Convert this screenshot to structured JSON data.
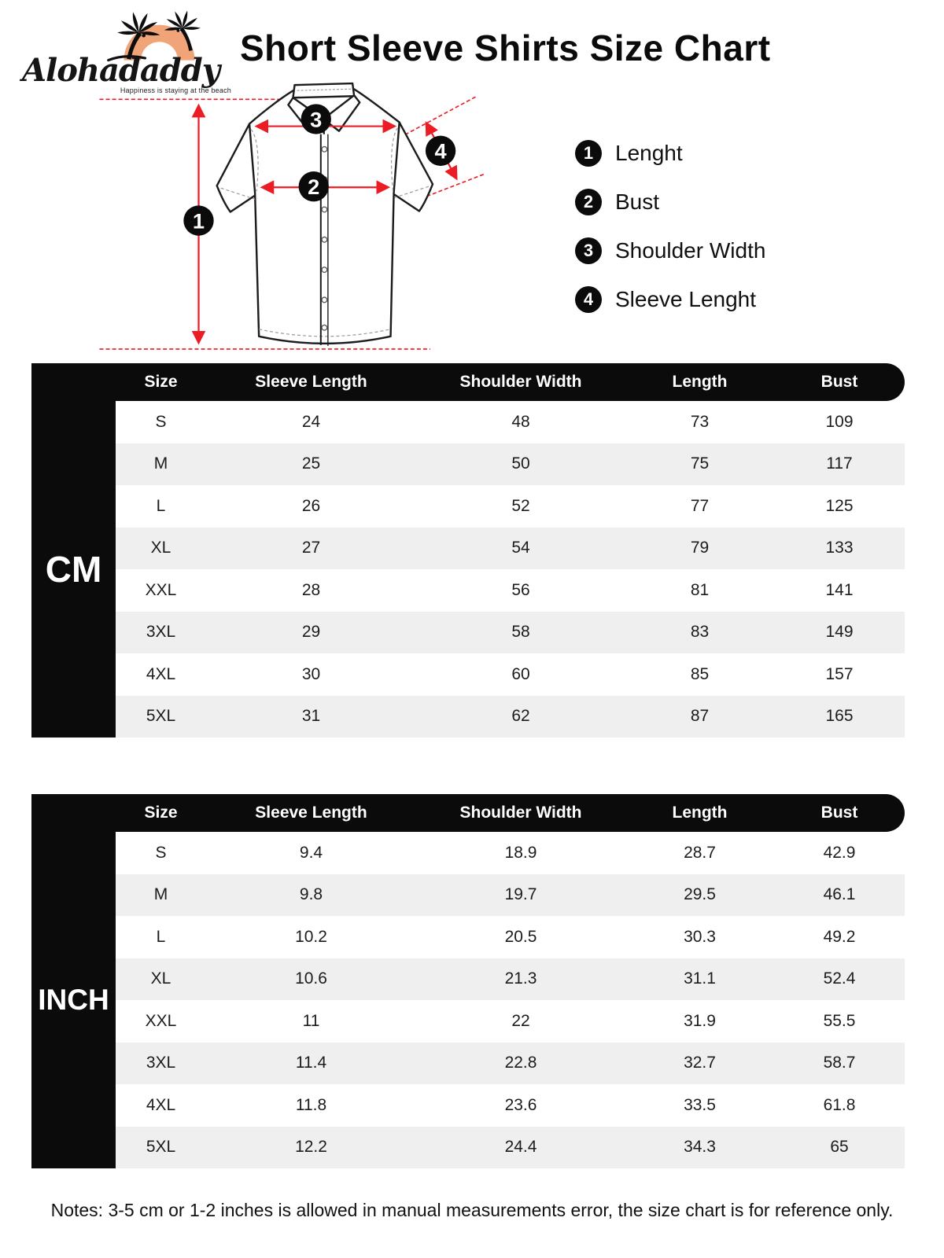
{
  "brand": {
    "name": "Alohadaddy",
    "tagline": "Happiness is staying at the beach"
  },
  "title": "Short Sleeve Shirts Size Chart",
  "legend": [
    {
      "num": "1",
      "label": "Lenght"
    },
    {
      "num": "2",
      "label": "Bust"
    },
    {
      "num": "3",
      "label": "Shoulder Width"
    },
    {
      "num": "4",
      "label": "Sleeve Lenght"
    }
  ],
  "chart_data": [
    {
      "type": "table",
      "unit": "CM",
      "headers": [
        "Size",
        "Sleeve Length",
        "Shoulder Width",
        "Length",
        "Bust"
      ],
      "rows": [
        [
          "S",
          "24",
          "48",
          "73",
          "109"
        ],
        [
          "M",
          "25",
          "50",
          "75",
          "117"
        ],
        [
          "L",
          "26",
          "52",
          "77",
          "125"
        ],
        [
          "XL",
          "27",
          "54",
          "79",
          "133"
        ],
        [
          "XXL",
          "28",
          "56",
          "81",
          "141"
        ],
        [
          "3XL",
          "29",
          "58",
          "83",
          "149"
        ],
        [
          "4XL",
          "30",
          "60",
          "85",
          "157"
        ],
        [
          "5XL",
          "31",
          "62",
          "87",
          "165"
        ]
      ]
    },
    {
      "type": "table",
      "unit": "INCH",
      "headers": [
        "Size",
        "Sleeve Length",
        "Shoulder Width",
        "Length",
        "Bust"
      ],
      "rows": [
        [
          "S",
          "9.4",
          "18.9",
          "28.7",
          "42.9"
        ],
        [
          "M",
          "9.8",
          "19.7",
          "29.5",
          "46.1"
        ],
        [
          "L",
          "10.2",
          "20.5",
          "30.3",
          "49.2"
        ],
        [
          "XL",
          "10.6",
          "21.3",
          "31.1",
          "52.4"
        ],
        [
          "XXL",
          "11",
          "22",
          "31.9",
          "55.5"
        ],
        [
          "3XL",
          "11.4",
          "22.8",
          "32.7",
          "58.7"
        ],
        [
          "4XL",
          "11.8",
          "23.6",
          "33.5",
          "61.8"
        ],
        [
          "5XL",
          "12.2",
          "24.4",
          "34.3",
          "65"
        ]
      ]
    }
  ],
  "notes": "Notes: 3-5 cm or 1-2 inches is allowed in manual measurements error, the size chart is for reference only.",
  "colors": {
    "accent_red": "#ec1c24",
    "row_alt": "#efefef",
    "ink_black": "#0b0b0b",
    "logo_orange": "#f2a479"
  }
}
